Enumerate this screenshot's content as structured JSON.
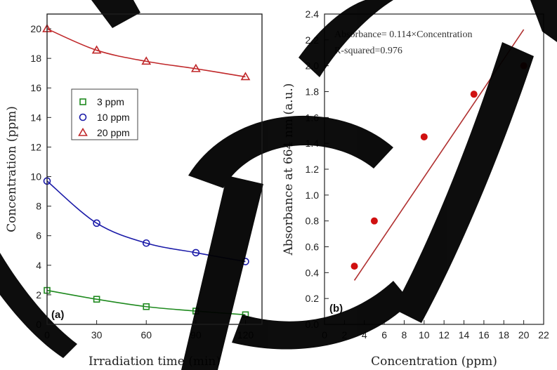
{
  "colors": {
    "series_3ppm": "#1f8a1f",
    "series_10ppm": "#1a1aa8",
    "series_20ppm": "#c0282a",
    "points_b": "#d01010",
    "fit_b": "#b03030"
  },
  "chart_data": [
    {
      "type": "scatter",
      "panel_label": "(a)",
      "xlabel": "Irradiation time (min)",
      "ylabel": "Concentration (ppm)",
      "xlim": [
        0,
        130
      ],
      "ylim": [
        0,
        21
      ],
      "xticks": [
        0,
        30,
        60,
        90,
        120
      ],
      "yticks": [
        0,
        2,
        4,
        6,
        8,
        10,
        12,
        14,
        16,
        18,
        20
      ],
      "legend_position": "upper-left",
      "grid": false,
      "series": [
        {
          "name": "3 ppm",
          "marker": "square",
          "x": [
            0,
            30,
            60,
            90,
            120
          ],
          "y": [
            2.3,
            1.7,
            1.2,
            0.9,
            0.65
          ]
        },
        {
          "name": "10 ppm",
          "marker": "circle",
          "x": [
            0,
            30,
            60,
            90,
            120
          ],
          "y": [
            9.7,
            6.85,
            5.5,
            4.85,
            4.25
          ]
        },
        {
          "name": "20 ppm",
          "marker": "triangle",
          "x": [
            0,
            30,
            60,
            90,
            120
          ],
          "y": [
            20.0,
            18.55,
            17.8,
            17.3,
            16.75
          ]
        }
      ]
    },
    {
      "type": "scatter",
      "panel_label": "(b)",
      "xlabel": "Concentration (ppm)",
      "ylabel": "Absorbance at 664 nm (a.u.)",
      "xlim": [
        0,
        22
      ],
      "ylim": [
        0,
        2.4
      ],
      "xticks": [
        0,
        2,
        4,
        6,
        8,
        10,
        12,
        14,
        16,
        18,
        20,
        22
      ],
      "yticks": [
        0.0,
        0.2,
        0.4,
        0.6,
        0.8,
        1.0,
        1.2,
        1.4,
        1.6,
        1.8,
        2.0,
        2.2,
        2.4
      ],
      "grid": false,
      "points": {
        "x": [
          3,
          5,
          10,
          15,
          20
        ],
        "y": [
          0.45,
          0.8,
          1.45,
          1.78,
          2.0
        ]
      },
      "fit_line": {
        "x": [
          3,
          20
        ],
        "y": [
          0.34,
          2.28
        ]
      },
      "annotation_lines": [
        "Absorbance= 0.114×Concentration",
        "R-squared=0.976"
      ]
    }
  ]
}
